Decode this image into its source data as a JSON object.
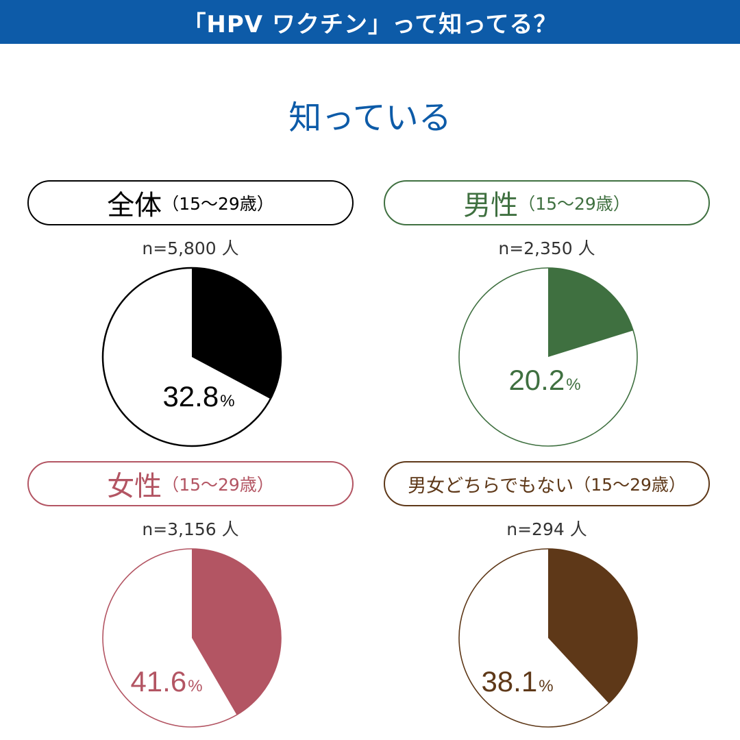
{
  "header": {
    "title": "「HPV ワクチン」って知ってる？"
  },
  "subtitle": "知っている",
  "chart_data": [
    {
      "type": "pie",
      "title": "全体",
      "age": "（15〜29歳）",
      "n_label": "n=5,800 人",
      "value": 32.8,
      "label_number": "32.8",
      "unit": "%",
      "color": "#000000"
    },
    {
      "type": "pie",
      "title": "男性",
      "age": "（15〜29歳）",
      "n_label": "n=2,350 人",
      "value": 20.2,
      "label_number": "20.2",
      "unit": "%",
      "color": "#3f7040"
    },
    {
      "type": "pie",
      "title": "女性",
      "age": "（15〜29歳）",
      "n_label": "n=3,156 人",
      "value": 41.6,
      "label_number": "41.6",
      "unit": "%",
      "color": "#b35563"
    },
    {
      "type": "pie",
      "title": "男女どちらでもない",
      "age": "（15〜29歳）",
      "n_label": "n=294 人",
      "value": 38.1,
      "label_number": "38.1",
      "unit": "%",
      "color": "#5e3818"
    }
  ]
}
